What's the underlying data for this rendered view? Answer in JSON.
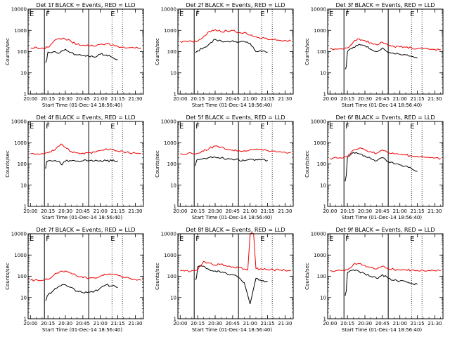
{
  "figure": {
    "colors": {
      "events": "#000000",
      "lld": "#ee0000",
      "axes": "#000000",
      "background": "#ffffff"
    }
  },
  "chart_data": [
    {
      "type": "line",
      "title": "Det 1f BLACK = Events, RED = LLD",
      "xlabel": "Start Time (01-Dec-14 18:56:40)",
      "ylabel": "Counts/sec",
      "y_scale": "log",
      "ylim": [
        1,
        10000
      ],
      "x_tick_labels": [
        "20:00",
        "20:15",
        "20:30",
        "20:45",
        "21:00",
        "21:15",
        "21:30"
      ],
      "y_tick_labels": [
        "1",
        "10",
        "100",
        "1000",
        "10000"
      ],
      "markers": [
        "E",
        "F",
        "E"
      ],
      "series": [
        {
          "name": "Events",
          "color": "#000000",
          "x": [
            "20:13",
            "20:14",
            "20:15",
            "20:20",
            "20:25",
            "20:30",
            "20:35",
            "20:40",
            "20:45",
            "20:50",
            "20:55",
            "21:00",
            "21:05",
            "21:10",
            "21:15"
          ],
          "y": [
            30,
            40,
            95,
            100,
            85,
            130,
            90,
            70,
            65,
            60,
            55,
            75,
            70,
            55,
            42
          ]
        },
        {
          "name": "LLD",
          "color": "#ee0000",
          "x": [
            "20:00",
            "20:10",
            "20:15",
            "20:20",
            "20:25",
            "20:30",
            "20:35",
            "20:40",
            "20:45",
            "20:50",
            "20:55",
            "21:00",
            "21:05",
            "21:10",
            "21:15",
            "21:20",
            "21:25",
            "21:30",
            "21:35"
          ],
          "y": [
            150,
            150,
            160,
            300,
            420,
            380,
            300,
            220,
            200,
            190,
            180,
            220,
            240,
            200,
            175,
            165,
            155,
            150,
            145
          ]
        }
      ]
    },
    {
      "type": "line",
      "title": "Det 2f BLACK = Events, RED = LLD",
      "xlabel": "Start Time (01-Dec-14 18:56:40)",
      "ylabel": "Counts/sec",
      "y_scale": "log",
      "ylim": [
        1,
        10000
      ],
      "x_tick_labels": [
        "20:00",
        "20:15",
        "20:30",
        "20:45",
        "21:00",
        "21:15",
        "21:30"
      ],
      "y_tick_labels": [
        "1",
        "10",
        "100",
        "1000",
        "10000"
      ],
      "markers": [
        "E",
        "F",
        "E"
      ],
      "series": [
        {
          "name": "Events",
          "color": "#000000",
          "x": [
            "20:13",
            "20:14",
            "20:15",
            "20:20",
            "20:25",
            "20:30",
            "20:35",
            "20:40",
            "20:45",
            "20:50",
            "20:55",
            "21:00",
            "21:05",
            "21:10",
            "21:15"
          ],
          "y": [
            90,
            100,
            110,
            150,
            230,
            380,
            320,
            300,
            330,
            280,
            300,
            250,
            100,
            100,
            95
          ]
        },
        {
          "name": "LLD",
          "color": "#ee0000",
          "x": [
            "20:00",
            "20:10",
            "20:15",
            "20:20",
            "20:25",
            "20:30",
            "20:35",
            "20:40",
            "20:45",
            "20:50",
            "20:55",
            "21:00",
            "21:05",
            "21:10",
            "21:15",
            "21:20",
            "21:25",
            "21:30",
            "21:35"
          ],
          "y": [
            300,
            300,
            310,
            500,
            900,
            1100,
            850,
            950,
            1000,
            750,
            800,
            600,
            500,
            430,
            380,
            360,
            340,
            330,
            320
          ]
        }
      ]
    },
    {
      "type": "line",
      "title": "Det 3f BLACK = Events, RED = LLD",
      "xlabel": "Start Time (01-Dec-14 18:56:40)",
      "ylabel": "Counts/sec",
      "y_scale": "log",
      "ylim": [
        1,
        10000
      ],
      "x_tick_labels": [
        "20:00",
        "20:15",
        "20:30",
        "20:45",
        "21:00",
        "21:15",
        "21:30"
      ],
      "y_tick_labels": [
        "1",
        "10",
        "100",
        "1000",
        "10000"
      ],
      "markers": [
        "E",
        "F",
        "E"
      ],
      "series": [
        {
          "name": "Events",
          "color": "#000000",
          "x": [
            "20:13",
            "20:14",
            "20:15",
            "20:20",
            "20:25",
            "20:30",
            "20:35",
            "20:40",
            "20:45",
            "20:50",
            "20:55",
            "21:00",
            "21:05",
            "21:10",
            "21:15"
          ],
          "y": [
            15,
            20,
            100,
            160,
            220,
            190,
            130,
            100,
            150,
            90,
            80,
            75,
            70,
            60,
            50
          ]
        },
        {
          "name": "LLD",
          "color": "#ee0000",
          "x": [
            "20:00",
            "20:10",
            "20:15",
            "20:20",
            "20:25",
            "20:30",
            "20:35",
            "20:40",
            "20:45",
            "20:50",
            "20:55",
            "21:00",
            "21:05",
            "21:10",
            "21:15",
            "21:20",
            "21:25",
            "21:30",
            "21:35"
          ],
          "y": [
            130,
            135,
            150,
            280,
            400,
            330,
            260,
            210,
            280,
            190,
            170,
            165,
            160,
            150,
            140,
            135,
            130,
            128,
            125
          ]
        }
      ]
    },
    {
      "type": "line",
      "title": "Det 4f BLACK = Events, RED = LLD",
      "xlabel": "Start Time (01-Dec-14 18:56:40)",
      "ylabel": "Counts/sec",
      "y_scale": "log",
      "ylim": [
        1,
        10000
      ],
      "x_tick_labels": [
        "20:00",
        "20:15",
        "20:30",
        "20:45",
        "21:00",
        "21:15",
        "21:30"
      ],
      "y_tick_labels": [
        "1",
        "10",
        "100",
        "1000",
        "10000"
      ],
      "markers": [
        "E",
        "F",
        "E"
      ],
      "series": [
        {
          "name": "Events",
          "color": "#000000",
          "x": [
            "20:13",
            "20:14",
            "20:15",
            "20:20",
            "20:25",
            "20:27",
            "20:30",
            "20:35",
            "20:40",
            "20:45",
            "20:50",
            "20:55",
            "21:00",
            "21:05",
            "21:10",
            "21:15"
          ],
          "y": [
            60,
            130,
            140,
            140,
            130,
            90,
            135,
            140,
            140,
            140,
            140,
            140,
            145,
            140,
            140,
            140
          ]
        },
        {
          "name": "LLD",
          "color": "#ee0000",
          "x": [
            "20:00",
            "20:10",
            "20:15",
            "20:20",
            "20:25",
            "20:27",
            "20:30",
            "20:35",
            "20:40",
            "20:45",
            "20:50",
            "20:55",
            "21:00",
            "21:05",
            "21:10",
            "21:15",
            "21:20",
            "21:25",
            "21:30",
            "21:35"
          ],
          "y": [
            300,
            310,
            330,
            420,
            700,
            850,
            600,
            380,
            330,
            320,
            330,
            360,
            430,
            520,
            480,
            400,
            360,
            330,
            320,
            310
          ]
        }
      ]
    },
    {
      "type": "line",
      "title": "Det 5f BLACK = Events, RED = LLD",
      "xlabel": "Start Time (01-Dec-14 18:56:40)",
      "ylabel": "Counts/sec",
      "y_scale": "log",
      "ylim": [
        1,
        10000
      ],
      "x_tick_labels": [
        "20:00",
        "20:15",
        "20:30",
        "20:45",
        "21:00",
        "21:15",
        "21:30"
      ],
      "y_tick_labels": [
        "1",
        "10",
        "100",
        "1000",
        "10000"
      ],
      "markers": [
        "E",
        "F",
        "E"
      ],
      "series": [
        {
          "name": "Events",
          "color": "#000000",
          "x": [
            "20:13",
            "20:14",
            "20:15",
            "20:20",
            "20:25",
            "20:30",
            "20:35",
            "20:40",
            "20:45",
            "20:50",
            "20:55",
            "21:00",
            "21:05",
            "21:10",
            "21:15"
          ],
          "y": [
            80,
            140,
            160,
            180,
            200,
            210,
            190,
            170,
            160,
            160,
            140,
            170,
            160,
            160,
            150
          ]
        },
        {
          "name": "LLD",
          "color": "#ee0000",
          "x": [
            "20:00",
            "20:10",
            "20:15",
            "20:20",
            "20:25",
            "20:30",
            "20:35",
            "20:40",
            "20:45",
            "20:50",
            "20:55",
            "21:00",
            "21:05",
            "21:10",
            "21:15",
            "21:20",
            "21:25",
            "21:30",
            "21:35"
          ],
          "y": [
            300,
            310,
            320,
            400,
            550,
            700,
            600,
            500,
            450,
            430,
            420,
            480,
            500,
            470,
            430,
            400,
            380,
            360,
            340
          ]
        }
      ]
    },
    {
      "type": "line",
      "title": "Det 6f BLACK = Events, RED = LLD",
      "xlabel": "Start Time (01-Dec-14 18:56:40)",
      "ylabel": "Counts/sec",
      "y_scale": "log",
      "ylim": [
        1,
        10000
      ],
      "x_tick_labels": [
        "20:00",
        "20:15",
        "20:30",
        "20:45",
        "21:00",
        "21:15",
        "21:30"
      ],
      "y_tick_labels": [
        "1",
        "10",
        "100",
        "1000",
        "10000"
      ],
      "markers": [
        "E",
        "F",
        "E"
      ],
      "series": [
        {
          "name": "Events",
          "color": "#000000",
          "x": [
            "20:13",
            "20:14",
            "20:15",
            "20:20",
            "20:25",
            "20:30",
            "20:35",
            "20:40",
            "20:45",
            "20:50",
            "20:55",
            "21:00",
            "21:05",
            "21:10",
            "21:15"
          ],
          "y": [
            15,
            30,
            220,
            350,
            300,
            240,
            180,
            140,
            200,
            130,
            100,
            90,
            80,
            60,
            45
          ]
        },
        {
          "name": "LLD",
          "color": "#ee0000",
          "x": [
            "20:00",
            "20:10",
            "20:15",
            "20:20",
            "20:25",
            "20:30",
            "20:35",
            "20:40",
            "20:45",
            "20:50",
            "20:55",
            "21:00",
            "21:05",
            "21:10",
            "21:15",
            "21:20",
            "21:25",
            "21:30",
            "21:35"
          ],
          "y": [
            180,
            190,
            220,
            450,
            550,
            450,
            380,
            320,
            450,
            330,
            300,
            280,
            260,
            240,
            220,
            210,
            200,
            190,
            180
          ]
        }
      ]
    },
    {
      "type": "line",
      "title": "Det 7f BLACK = Events, RED = LLD",
      "xlabel": "Start Time (01-Dec-14 18:56:40)",
      "ylabel": "Counts/sec",
      "y_scale": "log",
      "ylim": [
        1,
        10000
      ],
      "x_tick_labels": [
        "20:00",
        "20:15",
        "20:30",
        "20:45",
        "21:00",
        "21:15",
        "21:30"
      ],
      "y_tick_labels": [
        "1",
        "10",
        "100",
        "1000",
        "10000"
      ],
      "markers": [
        "E",
        "F",
        "E"
      ],
      "series": [
        {
          "name": "Events",
          "color": "#000000",
          "x": [
            "20:13",
            "20:14",
            "20:15",
            "20:20",
            "20:25",
            "20:30",
            "20:35",
            "20:40",
            "20:45",
            "20:50",
            "20:55",
            "21:00",
            "21:05",
            "21:10",
            "21:15"
          ],
          "y": [
            7,
            10,
            13,
            22,
            35,
            40,
            30,
            20,
            17,
            18,
            20,
            28,
            40,
            35,
            30
          ]
        },
        {
          "name": "LLD",
          "color": "#ee0000",
          "x": [
            "20:00",
            "20:10",
            "20:15",
            "20:20",
            "20:25",
            "20:30",
            "20:35",
            "20:40",
            "20:45",
            "20:50",
            "20:55",
            "21:00",
            "21:05",
            "21:10",
            "21:15",
            "21:20",
            "21:25",
            "21:30",
            "21:35"
          ],
          "y": [
            65,
            65,
            70,
            110,
            160,
            180,
            140,
            100,
            85,
            80,
            85,
            100,
            120,
            130,
            110,
            90,
            80,
            70,
            65
          ]
        }
      ]
    },
    {
      "type": "line",
      "title": "Det 8f BLACK = Events, RED = LLD",
      "xlabel": "Start Time (01-Dec-14 18:56:40)",
      "ylabel": "Counts/sec",
      "y_scale": "log",
      "ylim": [
        1,
        10000
      ],
      "x_tick_labels": [
        "20:00",
        "20:15",
        "20:30",
        "20:45",
        "21:00",
        "21:15",
        "21:30"
      ],
      "y_tick_labels": [
        "1",
        "10",
        "100",
        "1000",
        "10000"
      ],
      "markers": [
        "E",
        "F",
        "E"
      ],
      "series": [
        {
          "name": "Events",
          "color": "#000000",
          "x": [
            "20:13",
            "20:14",
            "20:15",
            "20:20",
            "20:25",
            "20:30",
            "20:35",
            "20:40",
            "20:45",
            "20:50",
            "20:55",
            "21:00",
            "21:05",
            "21:10",
            "21:15"
          ],
          "y": [
            70,
            90,
            280,
            300,
            200,
            180,
            150,
            130,
            120,
            90,
            50,
            5,
            80,
            60,
            55
          ]
        },
        {
          "name": "LLD",
          "color": "#ee0000",
          "x": [
            "20:00",
            "20:10",
            "20:15",
            "20:20",
            "20:25",
            "20:30",
            "20:35",
            "20:40",
            "20:45",
            "20:50",
            "20:55",
            "20:58",
            "21:00",
            "21:03",
            "21:05",
            "21:10",
            "21:15",
            "21:20",
            "21:25",
            "21:30",
            "21:35"
          ],
          "y": [
            180,
            185,
            200,
            500,
            420,
            330,
            380,
            300,
            280,
            250,
            220,
            200,
            10000,
            10000,
            230,
            220,
            210,
            200,
            195,
            190,
            185
          ]
        }
      ]
    },
    {
      "type": "line",
      "title": "Det 9f BLACK = Events, RED = LLD",
      "xlabel": "Start Time (01-Dec-14 18:56:40)",
      "ylabel": "Counts/sec",
      "y_scale": "log",
      "ylim": [
        1,
        10000
      ],
      "x_tick_labels": [
        "20:00",
        "20:15",
        "20:30",
        "20:45",
        "21:00",
        "21:15",
        "21:30"
      ],
      "y_tick_labels": [
        "1",
        "10",
        "100",
        "1000",
        "10000"
      ],
      "markers": [
        "E",
        "F",
        "E"
      ],
      "series": [
        {
          "name": "Events",
          "color": "#000000",
          "x": [
            "20:13",
            "20:14",
            "20:15",
            "20:20",
            "20:25",
            "20:30",
            "20:35",
            "20:40",
            "20:45",
            "20:50",
            "20:55",
            "21:00",
            "21:05",
            "21:10",
            "21:15"
          ],
          "y": [
            12,
            20,
            150,
            200,
            170,
            130,
            100,
            80,
            120,
            80,
            65,
            60,
            55,
            48,
            42
          ]
        },
        {
          "name": "LLD",
          "color": "#ee0000",
          "x": [
            "20:00",
            "20:10",
            "20:15",
            "20:20",
            "20:25",
            "20:30",
            "20:35",
            "20:40",
            "20:45",
            "20:50",
            "20:55",
            "21:00",
            "21:05",
            "21:10",
            "21:15",
            "21:20",
            "21:25",
            "21:30",
            "21:35"
          ],
          "y": [
            180,
            185,
            200,
            350,
            400,
            320,
            260,
            220,
            300,
            230,
            210,
            205,
            200,
            195,
            190,
            188,
            185,
            182,
            180
          ]
        }
      ]
    }
  ]
}
